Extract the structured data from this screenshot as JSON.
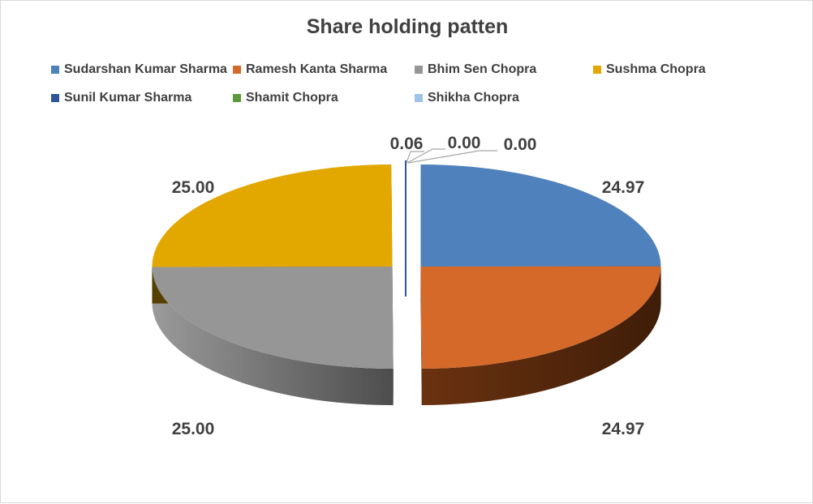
{
  "chart_data": {
    "type": "pie",
    "title": "Share holding patten",
    "series": [
      {
        "name": "Sudarshan Kumar Sharma",
        "value": 24.97,
        "color": "#4F81BD"
      },
      {
        "name": "Ramesh Kanta Sharma",
        "value": 24.97,
        "color": "#D4692A"
      },
      {
        "name": "Bhim Sen Chopra",
        "value": 25.0,
        "color": "#969696"
      },
      {
        "name": "Sushma Chopra",
        "value": 25.0,
        "color": "#E3A800"
      },
      {
        "name": "Sunil Kumar Sharma",
        "value": 0.06,
        "color": "#2E5597"
      },
      {
        "name": "Shamit Chopra",
        "value": 0.0,
        "color": "#5B9A3C"
      },
      {
        "name": "Shikha Chopra",
        "value": 0.0,
        "color": "#9DC3E6"
      }
    ],
    "data_labels": [
      "24.97",
      "24.97",
      "25.00",
      "25.00",
      "0.06",
      "0.00",
      "0.00"
    ],
    "legend_position": "top",
    "style": "3d-exploded"
  }
}
